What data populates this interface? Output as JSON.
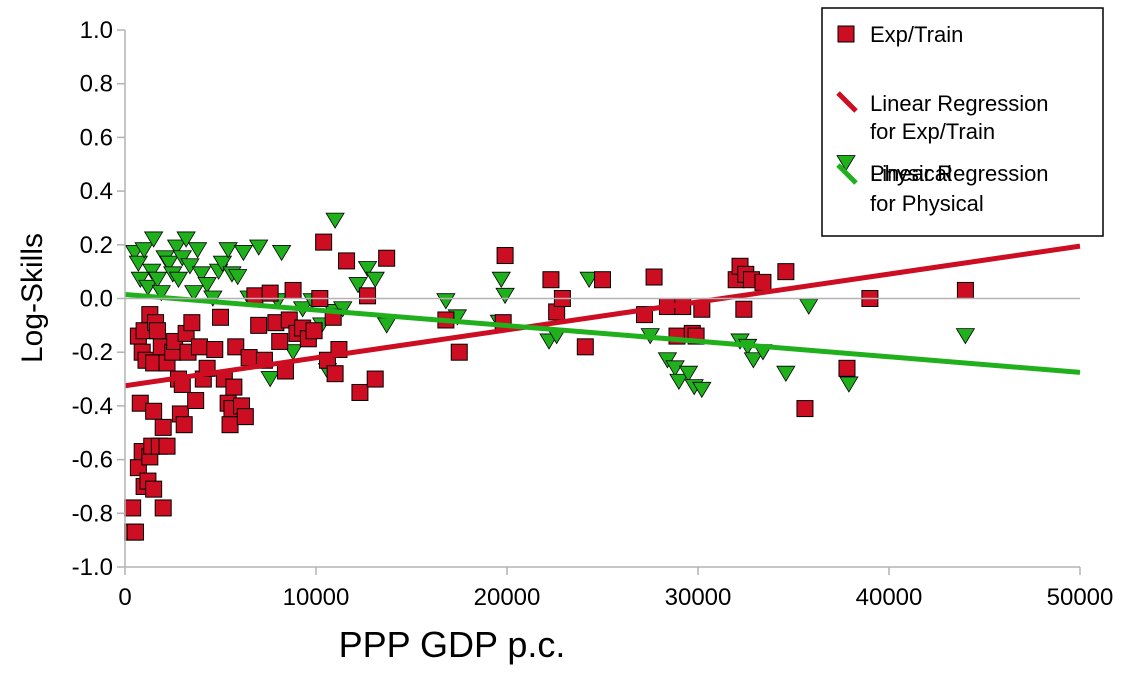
{
  "chart_data": {
    "type": "scatter",
    "title": "",
    "xlabel": "PPP GDP p.c.",
    "ylabel": "Log-Skills",
    "xlim": [
      0,
      50000
    ],
    "ylim": [
      -1.0,
      1.0
    ],
    "x_ticks": [
      "0",
      "10000",
      "20000",
      "30000",
      "40000",
      "50000"
    ],
    "y_ticks": [
      "1.0",
      "0.8",
      "0.6",
      "0.4",
      "0.2",
      "0.0",
      "-0.2",
      "-0.4",
      "-0.6",
      "-0.8",
      "-1.0"
    ],
    "grid": false,
    "legend_position": "top-right",
    "legend": [
      {
        "label": "Exp/Train",
        "kind": "square",
        "color": "#cc0d22"
      },
      {
        "label": "Linear Regression",
        "label2": "for Exp/Train",
        "kind": "line",
        "color": "#cc0d22"
      },
      {
        "label": "Physical",
        "kind": "triangle",
        "color": "#1fb01c"
      },
      {
        "label": "Linear Regression",
        "label2": "for Physical",
        "kind": "line",
        "color": "#1fb01c"
      }
    ],
    "series": [
      {
        "name": "Exp/Train",
        "marker": "square",
        "color": "#cc0d22",
        "points": [
          [
            400,
            -0.87
          ],
          [
            550,
            -0.87
          ],
          [
            400,
            -0.78
          ],
          [
            700,
            -0.63
          ],
          [
            900,
            -0.57
          ],
          [
            1000,
            -0.7
          ],
          [
            1200,
            -0.68
          ],
          [
            1300,
            -0.59
          ],
          [
            1500,
            -0.71
          ],
          [
            1400,
            -0.55
          ],
          [
            1800,
            -0.55
          ],
          [
            2000,
            -0.78
          ],
          [
            2200,
            -0.55
          ],
          [
            2000,
            -0.48
          ],
          [
            800,
            -0.39
          ],
          [
            1500,
            -0.42
          ],
          [
            700,
            -0.14
          ],
          [
            900,
            -0.2
          ],
          [
            1100,
            -0.23
          ],
          [
            1000,
            -0.12
          ],
          [
            1300,
            -0.06
          ],
          [
            1600,
            -0.09
          ],
          [
            1700,
            -0.12
          ],
          [
            1900,
            -0.18
          ],
          [
            1500,
            -0.24
          ],
          [
            2200,
            -0.24
          ],
          [
            2500,
            -0.2
          ],
          [
            2600,
            -0.16
          ],
          [
            2800,
            -0.3
          ],
          [
            2900,
            -0.43
          ],
          [
            3100,
            -0.47
          ],
          [
            3000,
            -0.32
          ],
          [
            3300,
            -0.2
          ],
          [
            3200,
            -0.13
          ],
          [
            3500,
            -0.09
          ],
          [
            3700,
            -0.38
          ],
          [
            3900,
            -0.18
          ],
          [
            4100,
            -0.3
          ],
          [
            4300,
            -0.26
          ],
          [
            4700,
            -0.19
          ],
          [
            5000,
            -0.07
          ],
          [
            5200,
            -0.3
          ],
          [
            5400,
            -0.39
          ],
          [
            5500,
            -0.47
          ],
          [
            5600,
            -0.41
          ],
          [
            5800,
            -0.18
          ],
          [
            5700,
            -0.33
          ],
          [
            6100,
            -0.4
          ],
          [
            6300,
            -0.44
          ],
          [
            6500,
            -0.22
          ],
          [
            6800,
            0.01
          ],
          [
            7000,
            -0.1
          ],
          [
            7300,
            -0.23
          ],
          [
            7600,
            0.02
          ],
          [
            7900,
            -0.09
          ],
          [
            8100,
            -0.16
          ],
          [
            8400,
            -0.27
          ],
          [
            8600,
            -0.08
          ],
          [
            8800,
            0.03
          ],
          [
            9000,
            -0.13
          ],
          [
            9300,
            -0.11
          ],
          [
            9600,
            -0.15
          ],
          [
            9900,
            -0.12
          ],
          [
            10200,
            0.0
          ],
          [
            10400,
            0.21
          ],
          [
            10600,
            -0.23
          ],
          [
            10900,
            -0.07
          ],
          [
            11200,
            -0.19
          ],
          [
            11000,
            -0.28
          ],
          [
            11600,
            0.14
          ],
          [
            12300,
            -0.35
          ],
          [
            12700,
            0.01
          ],
          [
            13100,
            -0.3
          ],
          [
            13700,
            0.15
          ],
          [
            16800,
            -0.08
          ],
          [
            17500,
            -0.2
          ],
          [
            19800,
            -0.09
          ],
          [
            19900,
            0.16
          ],
          [
            22300,
            0.07
          ],
          [
            22600,
            -0.05
          ],
          [
            22900,
            0.0
          ],
          [
            24100,
            -0.18
          ],
          [
            25000,
            0.07
          ],
          [
            27200,
            -0.06
          ],
          [
            27700,
            0.08
          ],
          [
            28400,
            -0.03
          ],
          [
            28900,
            -0.14
          ],
          [
            29200,
            -0.03
          ],
          [
            29700,
            -0.13
          ],
          [
            29900,
            -0.14
          ],
          [
            30200,
            -0.04
          ],
          [
            32000,
            0.07
          ],
          [
            32200,
            0.12
          ],
          [
            32500,
            0.09
          ],
          [
            32800,
            0.07
          ],
          [
            32400,
            -0.04
          ],
          [
            33400,
            0.06
          ],
          [
            34600,
            0.1
          ],
          [
            35600,
            -0.41
          ],
          [
            37800,
            -0.26
          ],
          [
            39000,
            0.0
          ],
          [
            44000,
            0.03
          ]
        ]
      },
      {
        "name": "Physical",
        "marker": "triangle",
        "color": "#1fb01c",
        "points": [
          [
            500,
            0.17
          ],
          [
            700,
            0.13
          ],
          [
            800,
            0.07
          ],
          [
            1000,
            0.18
          ],
          [
            1200,
            0.04
          ],
          [
            1400,
            0.1
          ],
          [
            1500,
            0.22
          ],
          [
            1700,
            0.07
          ],
          [
            1900,
            0.02
          ],
          [
            2100,
            0.15
          ],
          [
            2300,
            0.13
          ],
          [
            2500,
            0.09
          ],
          [
            2700,
            0.19
          ],
          [
            2800,
            0.07
          ],
          [
            3000,
            0.15
          ],
          [
            3200,
            0.22
          ],
          [
            3400,
            0.12
          ],
          [
            3600,
            0.02
          ],
          [
            3800,
            0.18
          ],
          [
            4000,
            0.09
          ],
          [
            4300,
            0.05
          ],
          [
            4600,
            0.0
          ],
          [
            4900,
            0.1
          ],
          [
            5100,
            0.13
          ],
          [
            5400,
            0.18
          ],
          [
            5600,
            0.09
          ],
          [
            5900,
            0.08
          ],
          [
            6200,
            0.17
          ],
          [
            6500,
            0.0
          ],
          [
            7000,
            0.19
          ],
          [
            7600,
            -0.3
          ],
          [
            8000,
            -0.01
          ],
          [
            8200,
            0.17
          ],
          [
            8800,
            -0.2
          ],
          [
            9300,
            -0.04
          ],
          [
            9800,
            -0.01
          ],
          [
            10300,
            -0.1
          ],
          [
            10600,
            -0.27
          ],
          [
            10900,
            -0.05
          ],
          [
            11000,
            0.29
          ],
          [
            11400,
            -0.04
          ],
          [
            12200,
            0.05
          ],
          [
            12700,
            0.11
          ],
          [
            13100,
            0.07
          ],
          [
            13700,
            -0.1
          ],
          [
            16800,
            -0.01
          ],
          [
            17400,
            -0.07
          ],
          [
            19600,
            -0.09
          ],
          [
            19700,
            0.07
          ],
          [
            19900,
            0.01
          ],
          [
            22200,
            -0.16
          ],
          [
            22600,
            -0.14
          ],
          [
            24300,
            0.07
          ],
          [
            27500,
            -0.14
          ],
          [
            28400,
            -0.23
          ],
          [
            28800,
            -0.26
          ],
          [
            29000,
            -0.31
          ],
          [
            29500,
            -0.28
          ],
          [
            29800,
            -0.33
          ],
          [
            30200,
            -0.34
          ],
          [
            32200,
            -0.16
          ],
          [
            32600,
            -0.18
          ],
          [
            32900,
            -0.23
          ],
          [
            33400,
            -0.2
          ],
          [
            34600,
            -0.28
          ],
          [
            35800,
            -0.03
          ],
          [
            37900,
            -0.32
          ],
          [
            44000,
            -0.14
          ]
        ]
      }
    ],
    "regression": [
      {
        "name": "Linear Regression for Exp/Train",
        "color": "#cc0d22",
        "x": [
          0,
          50000
        ],
        "y": [
          -0.325,
          0.195
        ]
      },
      {
        "name": "Linear Regression for Physical",
        "color": "#1fb01c",
        "x": [
          0,
          50000
        ],
        "y": [
          0.015,
          -0.275
        ]
      }
    ]
  }
}
